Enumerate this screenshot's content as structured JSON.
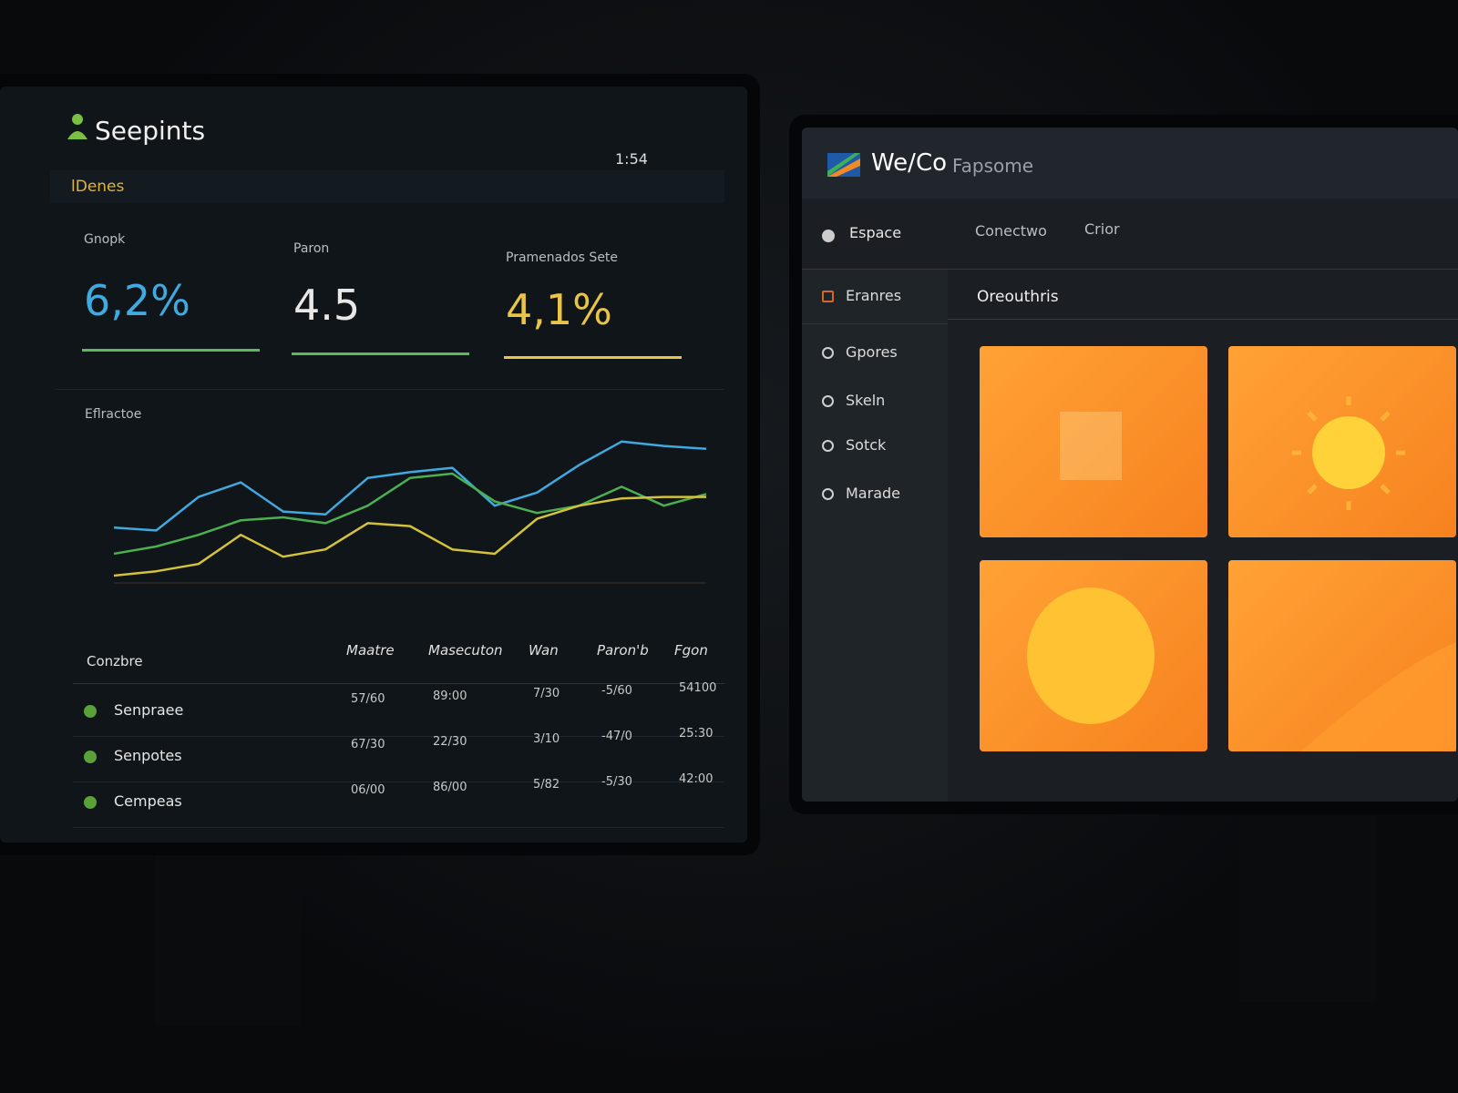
{
  "left_screen": {
    "app_title": "Seepints",
    "status_time": "1:54",
    "section": "lDenes",
    "kpis": [
      {
        "label": "Gnopk",
        "value": "6,2%",
        "color": "#3fa9e0",
        "line_color": "#5cb85c"
      },
      {
        "label": "Paron",
        "value": "4.5",
        "color": "#e8e8e8",
        "line_color": "#5cb85c"
      },
      {
        "label": "Pramenados Sete",
        "value": "4,1%",
        "color": "#e8c547",
        "line_color": "#e8c547"
      }
    ],
    "chart": {
      "title": "Eflractoe",
      "ylim": [
        0,
        100
      ],
      "series": [
        {
          "color": "#3fa9e0",
          "values": [
            38,
            36,
            59,
            69,
            49,
            47,
            72,
            76,
            79,
            53,
            62,
            81,
            97,
            94,
            92
          ]
        },
        {
          "color": "#4caf50",
          "values": [
            20,
            25,
            33,
            43,
            45,
            41,
            53,
            72,
            75,
            56,
            48,
            53,
            66,
            53,
            61
          ]
        },
        {
          "color": "#d4c23a",
          "values": [
            5,
            8,
            13,
            33,
            18,
            23,
            41,
            39,
            23,
            20,
            44,
            53,
            58,
            59,
            59
          ]
        }
      ]
    },
    "table": {
      "columns": [
        "Conzbre",
        "Maatre",
        "Masecuton",
        "Wan",
        "Paron'b",
        "Fgon"
      ],
      "rows": [
        {
          "name": "Senpraee",
          "cells": [
            "57/60",
            "89:00",
            "7/30",
            "-5/60",
            "54100"
          ]
        },
        {
          "name": "Senpotes",
          "cells": [
            "67/30",
            "22/30",
            "3/10",
            "-47/0",
            "25:30"
          ]
        },
        {
          "name": "Cempeas",
          "cells": [
            "06/00",
            "86/00",
            "5/82",
            "-5/30",
            "42:00"
          ]
        }
      ]
    }
  },
  "right_screen": {
    "logo_text": "We/Co",
    "app_name": "Fapsome",
    "nav": [
      "Espace",
      "Conectwo",
      "Crior"
    ],
    "sidebar": [
      "Eranres",
      "Gpores",
      "Skeln",
      "Sotck",
      "Marade"
    ],
    "heading": "Oreouthris"
  }
}
